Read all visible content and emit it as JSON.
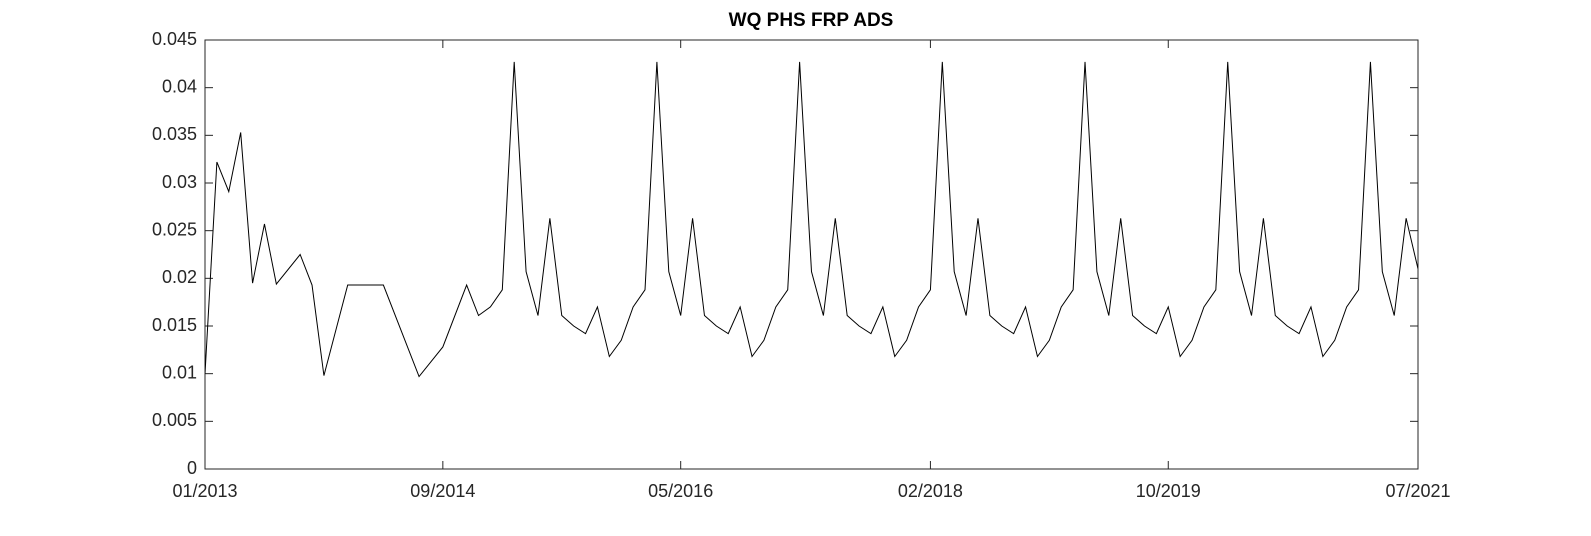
{
  "chart_data": {
    "type": "line",
    "title": "WQ PHS FRP ADS",
    "color": "#000000",
    "x": [
      "2013-01",
      "2013-02",
      "2013-03",
      "2013-04",
      "2013-05",
      "2013-06",
      "2013-07",
      "2013-09",
      "2013-10",
      "2013-11",
      "2014-01",
      "2014-04",
      "2014-07",
      "2014-09",
      "2014-11",
      "2014-12",
      "2015-01",
      "2015-02",
      "2015-03",
      "2015-04",
      "2015-05",
      "2015-06",
      "2015-07",
      "2015-08",
      "2015-09",
      "2015-10",
      "2015-11",
      "2015-12",
      "2016-01",
      "2016-02",
      "2016-03",
      "2016-04",
      "2016-05",
      "2016-06",
      "2016-07",
      "2016-08",
      "2016-09",
      "2016-10",
      "2016-11",
      "2016-12",
      "2017-01",
      "2017-02",
      "2017-03",
      "2017-04",
      "2017-05",
      "2017-06",
      "2017-07",
      "2017-08",
      "2017-09",
      "2017-10",
      "2017-11",
      "2017-12",
      "2018-01",
      "2018-02",
      "2018-03",
      "2018-04",
      "2018-05",
      "2018-06",
      "2018-07",
      "2018-08",
      "2018-09",
      "2018-10",
      "2018-11",
      "2018-12",
      "2019-01",
      "2019-02",
      "2019-03",
      "2019-04",
      "2019-05",
      "2019-06",
      "2019-07",
      "2019-08",
      "2019-09",
      "2019-10",
      "2019-11",
      "2019-12",
      "2020-01",
      "2020-02",
      "2020-03",
      "2020-04",
      "2020-05",
      "2020-06",
      "2020-07",
      "2020-08",
      "2020-09",
      "2020-10",
      "2020-11",
      "2020-12",
      "2021-01",
      "2021-02",
      "2021-03",
      "2021-04",
      "2021-05",
      "2021-06",
      "2021-07"
    ],
    "values": [
      0.01,
      0.0322,
      0.0291,
      0.0353,
      0.0195,
      0.0257,
      0.0194,
      0.0225,
      0.0193,
      0.0098,
      0.0193,
      0.0193,
      0.0097,
      0.0128,
      0.0193,
      0.0161,
      0.017,
      0.0188,
      0.0427,
      0.0207,
      0.0161,
      0.0263,
      0.0161,
      0.015,
      0.0142,
      0.017,
      0.0118,
      0.0135,
      0.017,
      0.0188,
      0.0427,
      0.0207,
      0.0161,
      0.0263,
      0.0161,
      0.015,
      0.0142,
      0.017,
      0.0118,
      0.0135,
      0.017,
      0.0188,
      0.0427,
      0.0207,
      0.0161,
      0.0263,
      0.0161,
      0.015,
      0.0142,
      0.017,
      0.0118,
      0.0135,
      0.017,
      0.0188,
      0.0427,
      0.0207,
      0.0161,
      0.0263,
      0.0161,
      0.015,
      0.0142,
      0.017,
      0.0118,
      0.0135,
      0.017,
      0.0188,
      0.0427,
      0.0207,
      0.0161,
      0.0263,
      0.0161,
      0.015,
      0.0142,
      0.017,
      0.0118,
      0.0135,
      0.017,
      0.0188,
      0.0427,
      0.0207,
      0.0161,
      0.0263,
      0.0161,
      0.015,
      0.0142,
      0.017,
      0.0118,
      0.0135,
      0.017,
      0.0188,
      0.0427,
      0.0207,
      0.0161,
      0.0263,
      0.021
    ],
    "xlim": [
      "2013-01",
      "2021-07"
    ],
    "xticks": [
      {
        "value": "2013-01",
        "label": "01/2013"
      },
      {
        "value": "2014-09",
        "label": "09/2014"
      },
      {
        "value": "2016-05",
        "label": "05/2016"
      },
      {
        "value": "2018-02",
        "label": "02/2018"
      },
      {
        "value": "2019-10",
        "label": "10/2019"
      },
      {
        "value": "2021-07",
        "label": "07/2021"
      }
    ],
    "ylim": [
      0,
      0.045
    ],
    "yticks": [
      0,
      0.005,
      0.01,
      0.015,
      0.02,
      0.025,
      0.03,
      0.035,
      0.04,
      0.045
    ],
    "grid": false
  }
}
